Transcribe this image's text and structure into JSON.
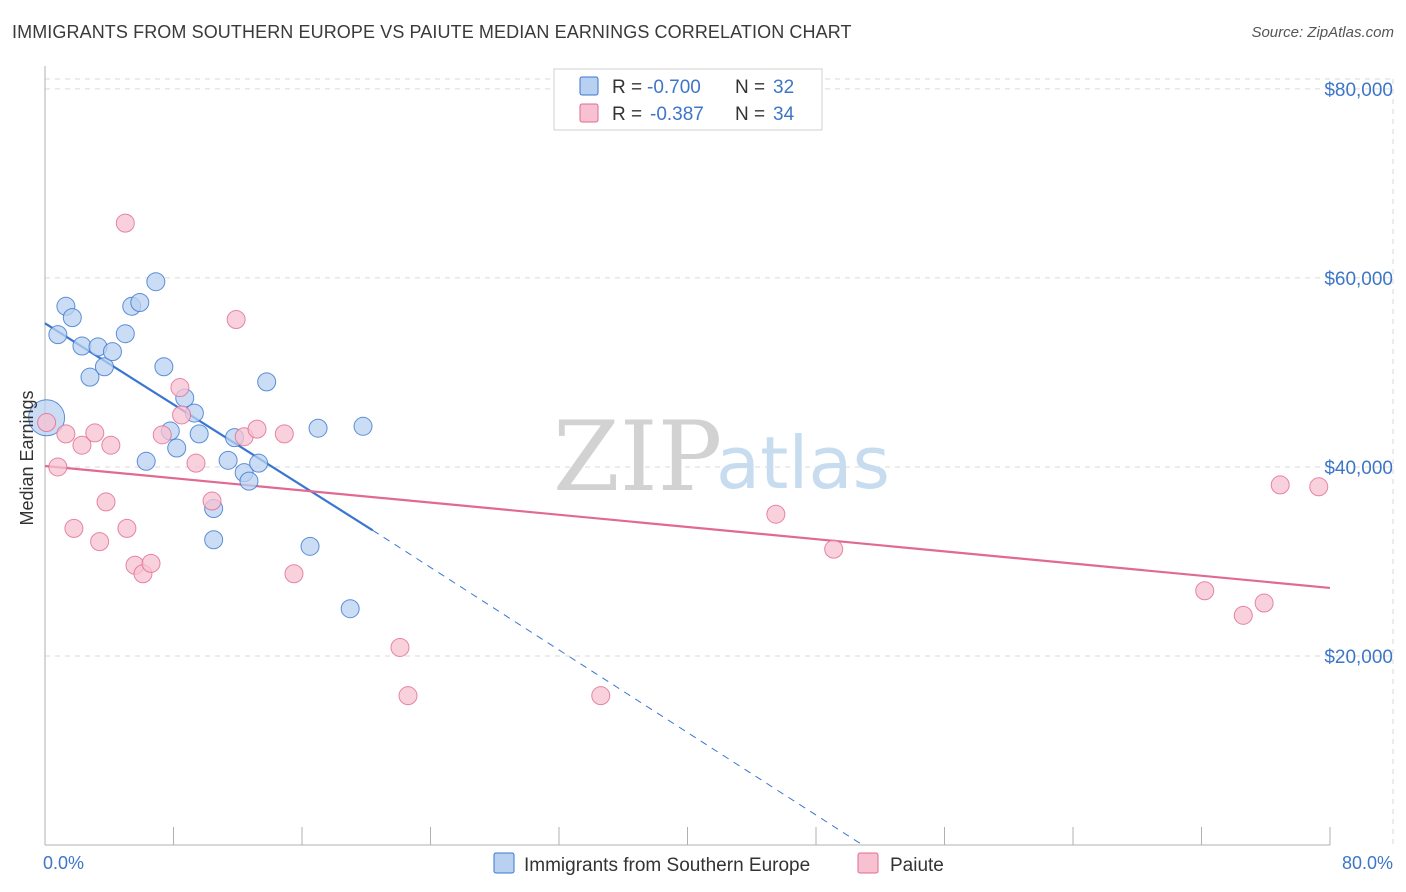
{
  "title": "IMMIGRANTS FROM SOUTHERN EUROPE VS PAIUTE MEDIAN EARNINGS CORRELATION CHART",
  "source": "Source: ZipAtlas.com",
  "watermark": {
    "zip": "ZIP",
    "atlas": "atlas"
  },
  "colors": {
    "blue": "#3a76d0",
    "blue_fill": "#b8d1f0",
    "pink": "#e06a93",
    "pink_fill": "#f7c1d1",
    "tick": "#3d76c9",
    "grid": "#d8d8d8"
  },
  "chart_data": {
    "type": "scatter",
    "title": "IMMIGRANTS FROM SOUTHERN EUROPE VS PAIUTE MEDIAN EARNINGS CORRELATION CHART",
    "xlabel": "",
    "ylabel": "Median Earnings",
    "xlim": [
      0,
      80
    ],
    "ylim": [
      0,
      82000
    ],
    "x_tick_labels": [
      "0.0%",
      "80.0%"
    ],
    "y_ticks": [
      20000,
      40000,
      60000,
      80000
    ],
    "y_tick_labels": [
      "$20,000",
      "$40,000",
      "$60,000",
      "$80,000"
    ],
    "grid": true,
    "legend_stats": [
      {
        "r_label": "R = ",
        "r_value": "-0.700",
        "n_label": "N = ",
        "n_value": "32"
      },
      {
        "r_label": "R = ",
        "r_value": "-0.387",
        "n_label": "N = ",
        "n_value": "34"
      }
    ],
    "series": [
      {
        "name": "Immigrants from Southern Europe",
        "color": "#3a76d0",
        "points": [
          [
            0.1,
            45200
          ],
          [
            0.8,
            54000
          ],
          [
            1.3,
            57000
          ],
          [
            1.7,
            55800
          ],
          [
            2.3,
            52800
          ],
          [
            2.8,
            49500
          ],
          [
            3.3,
            52700
          ],
          [
            3.7,
            50600
          ],
          [
            4.2,
            52200
          ],
          [
            5.0,
            54100
          ],
          [
            5.4,
            57000
          ],
          [
            5.9,
            57400
          ],
          [
            6.3,
            40600
          ],
          [
            6.9,
            59600
          ],
          [
            7.4,
            50600
          ],
          [
            7.8,
            43800
          ],
          [
            8.2,
            42000
          ],
          [
            8.7,
            47300
          ],
          [
            9.3,
            45700
          ],
          [
            9.6,
            43500
          ],
          [
            10.5,
            35600
          ],
          [
            10.5,
            32300
          ],
          [
            11.4,
            40700
          ],
          [
            11.8,
            43100
          ],
          [
            12.4,
            39400
          ],
          [
            12.7,
            38500
          ],
          [
            13.3,
            40400
          ],
          [
            13.8,
            49000
          ],
          [
            16.5,
            31600
          ],
          [
            17.0,
            44100
          ],
          [
            19.0,
            25000
          ],
          [
            19.8,
            44300
          ]
        ],
        "trend": {
          "x": [
            0,
            20.4
          ],
          "y": [
            55200,
            33300
          ],
          "dashed_to": [
            51,
            0
          ]
        }
      },
      {
        "name": "Paiute",
        "color": "#e06a93",
        "points": [
          [
            0.1,
            44700
          ],
          [
            0.8,
            40000
          ],
          [
            1.3,
            43500
          ],
          [
            1.8,
            33500
          ],
          [
            2.3,
            42300
          ],
          [
            3.1,
            43600
          ],
          [
            3.4,
            32100
          ],
          [
            3.8,
            36300
          ],
          [
            4.1,
            42300
          ],
          [
            5.1,
            33500
          ],
          [
            5.0,
            65800
          ],
          [
            5.6,
            29600
          ],
          [
            6.1,
            28700
          ],
          [
            6.6,
            29800
          ],
          [
            7.3,
            43400
          ],
          [
            8.4,
            48400
          ],
          [
            8.5,
            45500
          ],
          [
            9.4,
            40400
          ],
          [
            10.4,
            36400
          ],
          [
            11.9,
            55600
          ],
          [
            12.4,
            43200
          ],
          [
            13.2,
            44000
          ],
          [
            14.9,
            43500
          ],
          [
            15.5,
            28700
          ],
          [
            22.1,
            20900
          ],
          [
            22.6,
            15800
          ],
          [
            34.6,
            15800
          ],
          [
            45.5,
            35000
          ],
          [
            49.1,
            31300
          ],
          [
            72.2,
            26900
          ],
          [
            74.6,
            24300
          ],
          [
            75.9,
            25600
          ],
          [
            76.9,
            38100
          ],
          [
            79.3,
            37900
          ]
        ],
        "trend": {
          "x": [
            0,
            80
          ],
          "y": [
            40100,
            27200
          ]
        }
      }
    ]
  }
}
